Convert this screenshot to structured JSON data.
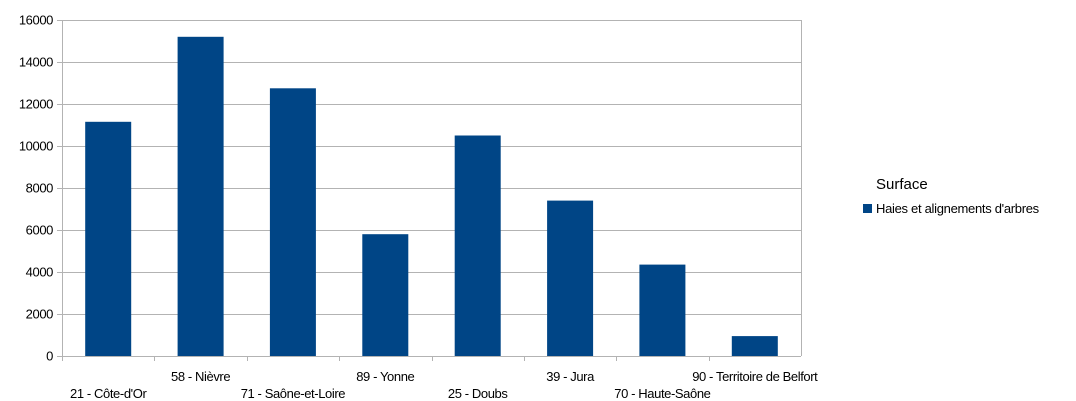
{
  "chart_data": {
    "type": "bar",
    "categories": [
      "21 - Côte-d'Or",
      "58 - Nièvre",
      "71 - Saône-et-Loire",
      "89 - Yonne",
      "25 - Doubs",
      "39 - Jura",
      "70 - Haute-Saône",
      "90 - Territoire de Belfort"
    ],
    "series": [
      {
        "name": "Haies et alignements d'arbres",
        "color": "#004586",
        "values": [
          11150,
          15200,
          12750,
          5800,
          10500,
          7400,
          4350,
          950
        ]
      }
    ],
    "legend": {
      "title": "Surface",
      "position": "right"
    },
    "y_ticks": [
      "0",
      "2000",
      "4000",
      "6000",
      "8000",
      "10000",
      "12000",
      "14000",
      "16000"
    ],
    "ylim": [
      0,
      16000
    ],
    "grid": true
  }
}
